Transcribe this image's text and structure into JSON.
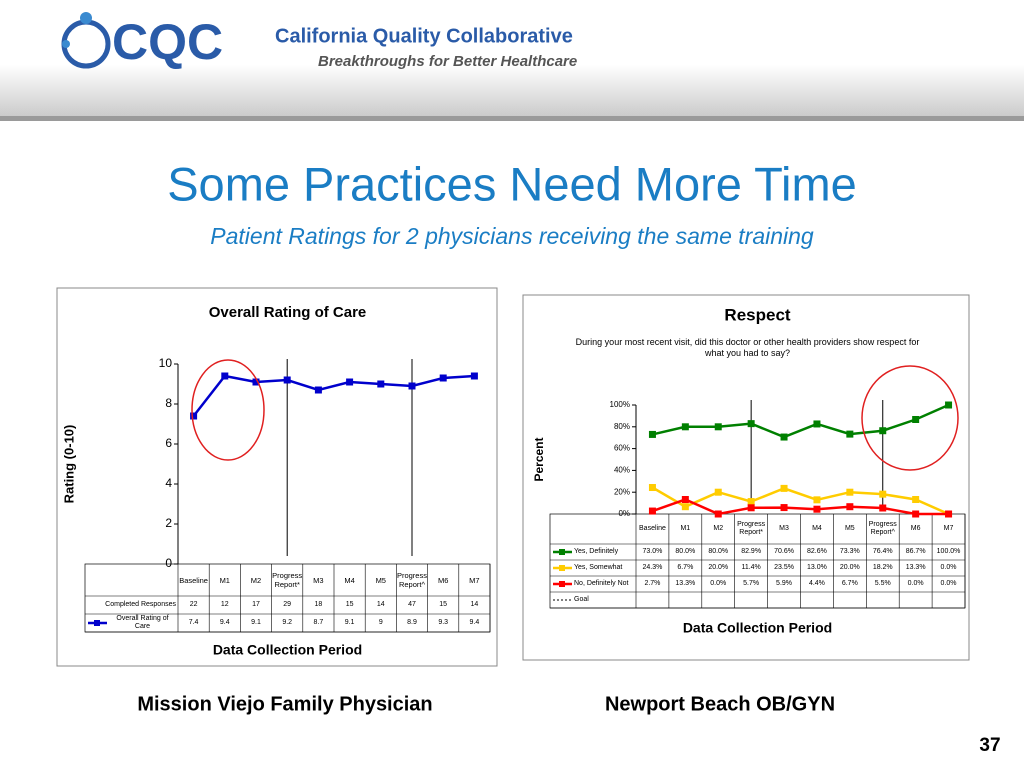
{
  "header": {
    "brand": "CQC",
    "org": "California Quality Collaborative",
    "tagline": "Breakthroughs for Better Healthcare"
  },
  "title": "Some Practices Need More Time",
  "subtitle": "Patient Ratings for 2 physicians receiving the same training",
  "page_number": "37",
  "chart_data": [
    {
      "type": "line",
      "title": "Overall Rating of Care",
      "y_label": "Rating (0-10)",
      "x_label": "Data Collection Period",
      "caption": "Mission Viejo Family Physician",
      "categories": [
        "Baseline",
        "M1",
        "M2",
        "Progress Report*",
        "M3",
        "M4",
        "M5",
        "Progress Report^",
        "M6",
        "M7"
      ],
      "ylim": [
        0,
        10
      ],
      "yticks": [
        0,
        2,
        4,
        6,
        8,
        10
      ],
      "table_rows": [
        {
          "name": "Completed Responses",
          "values": [
            22,
            12,
            17,
            29,
            18,
            15,
            14,
            47,
            15,
            14
          ]
        }
      ],
      "series": [
        {
          "name": "Overall Rating of Care",
          "color": "#0000cc",
          "values": [
            7.4,
            9.4,
            9.1,
            9.2,
            8.7,
            9.1,
            9,
            8.9,
            9.3,
            9.4
          ]
        }
      ]
    },
    {
      "type": "line",
      "title": "Respect",
      "subtitle": "During your most recent visit, did this doctor or other health providers show respect for what you had to say?",
      "y_label": "Percent",
      "x_label": "Data Collection Period",
      "caption": "Newport Beach OB/GYN",
      "categories": [
        "Baseline",
        "M1",
        "M2",
        "Progress Report*",
        "M3",
        "M4",
        "M5",
        "Progress Report^",
        "M6",
        "M7"
      ],
      "ylim": [
        0,
        100
      ],
      "yticks": [
        {
          "value": 0,
          "label": "0%"
        },
        {
          "value": 20,
          "label": "20%"
        },
        {
          "value": 40,
          "label": "40%"
        },
        {
          "value": 60,
          "label": "60%"
        },
        {
          "value": 80,
          "label": "80%"
        },
        {
          "value": 100,
          "label": "100%"
        }
      ],
      "series": [
        {
          "name": "Yes, Definitely",
          "color": "#008000",
          "values": [
            73,
            80,
            80,
            82.9,
            70.6,
            82.6,
            73.3,
            76.4,
            86.7,
            100
          ],
          "value_labels": [
            "73.0%",
            "80.0%",
            "80.0%",
            "82.9%",
            "70.6%",
            "82.6%",
            "73.3%",
            "76.4%",
            "86.7%",
            "100.0%"
          ]
        },
        {
          "name": "Yes, Somewhat",
          "color": "#ffcc00",
          "values": [
            24.3,
            6.7,
            20,
            11.4,
            23.5,
            13,
            20,
            18.2,
            13.3,
            0
          ],
          "value_labels": [
            "24.3%",
            "6.7%",
            "20.0%",
            "11.4%",
            "23.5%",
            "13.0%",
            "20.0%",
            "18.2%",
            "13.3%",
            "0.0%"
          ]
        },
        {
          "name": "No, Definitely Not",
          "color": "#ff0000",
          "values": [
            2.7,
            13.3,
            0,
            5.7,
            5.9,
            4.4,
            6.7,
            5.5,
            0,
            0
          ],
          "value_labels": [
            "2.7%",
            "13.3%",
            "0.0%",
            "5.7%",
            "5.9%",
            "4.4%",
            "6.7%",
            "5.5%",
            "0.0%",
            "0.0%"
          ]
        },
        {
          "name": "Goal",
          "color": "#000000",
          "dash": true,
          "values": [
            null,
            null,
            null,
            null,
            null,
            null,
            null,
            null,
            null,
            null
          ]
        }
      ]
    }
  ]
}
